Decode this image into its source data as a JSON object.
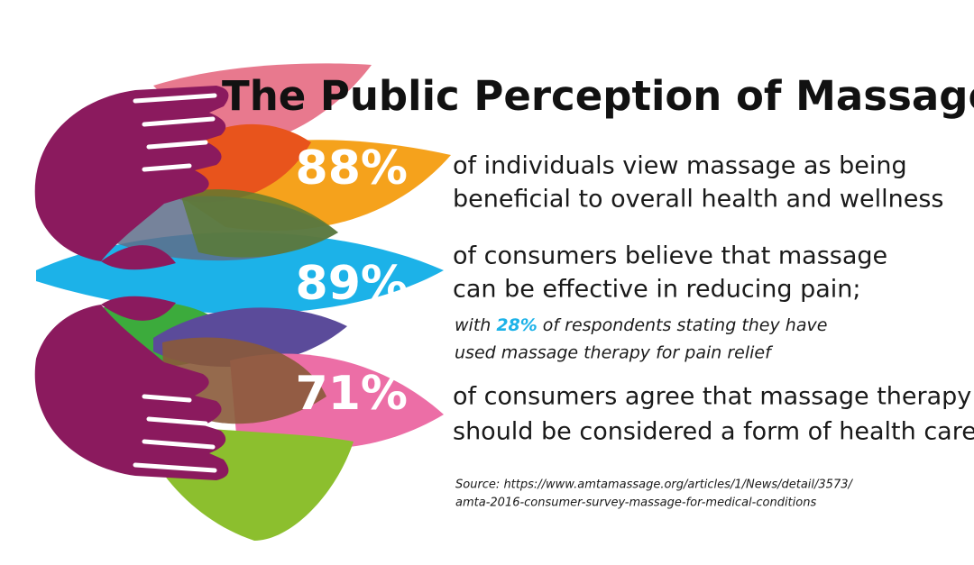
{
  "title": "The Public Perception of Massage",
  "stats": [
    {
      "value": "88%",
      "lines": [
        "of individuals view massage as being",
        "beneficial to overall health and wellness"
      ]
    },
    {
      "value": "89%",
      "lines": [
        "of consumers believe that massage",
        "can be effective in reducing pain;"
      ]
    },
    {
      "value": "71%",
      "lines": [
        "of consumers agree that massage therapy",
        "should be considered a form of health care"
      ]
    }
  ],
  "note": {
    "before": "with",
    "highlight": "28%",
    "after": "of respondents stating they have",
    "line2": "used massage therapy for pain relief"
  },
  "source": [
    "Source: https://www.amtamassage.org/articles/1/News/detail/3573/",
    "amta-2016-consumer-survey-massage-for-medical-conditions"
  ]
}
